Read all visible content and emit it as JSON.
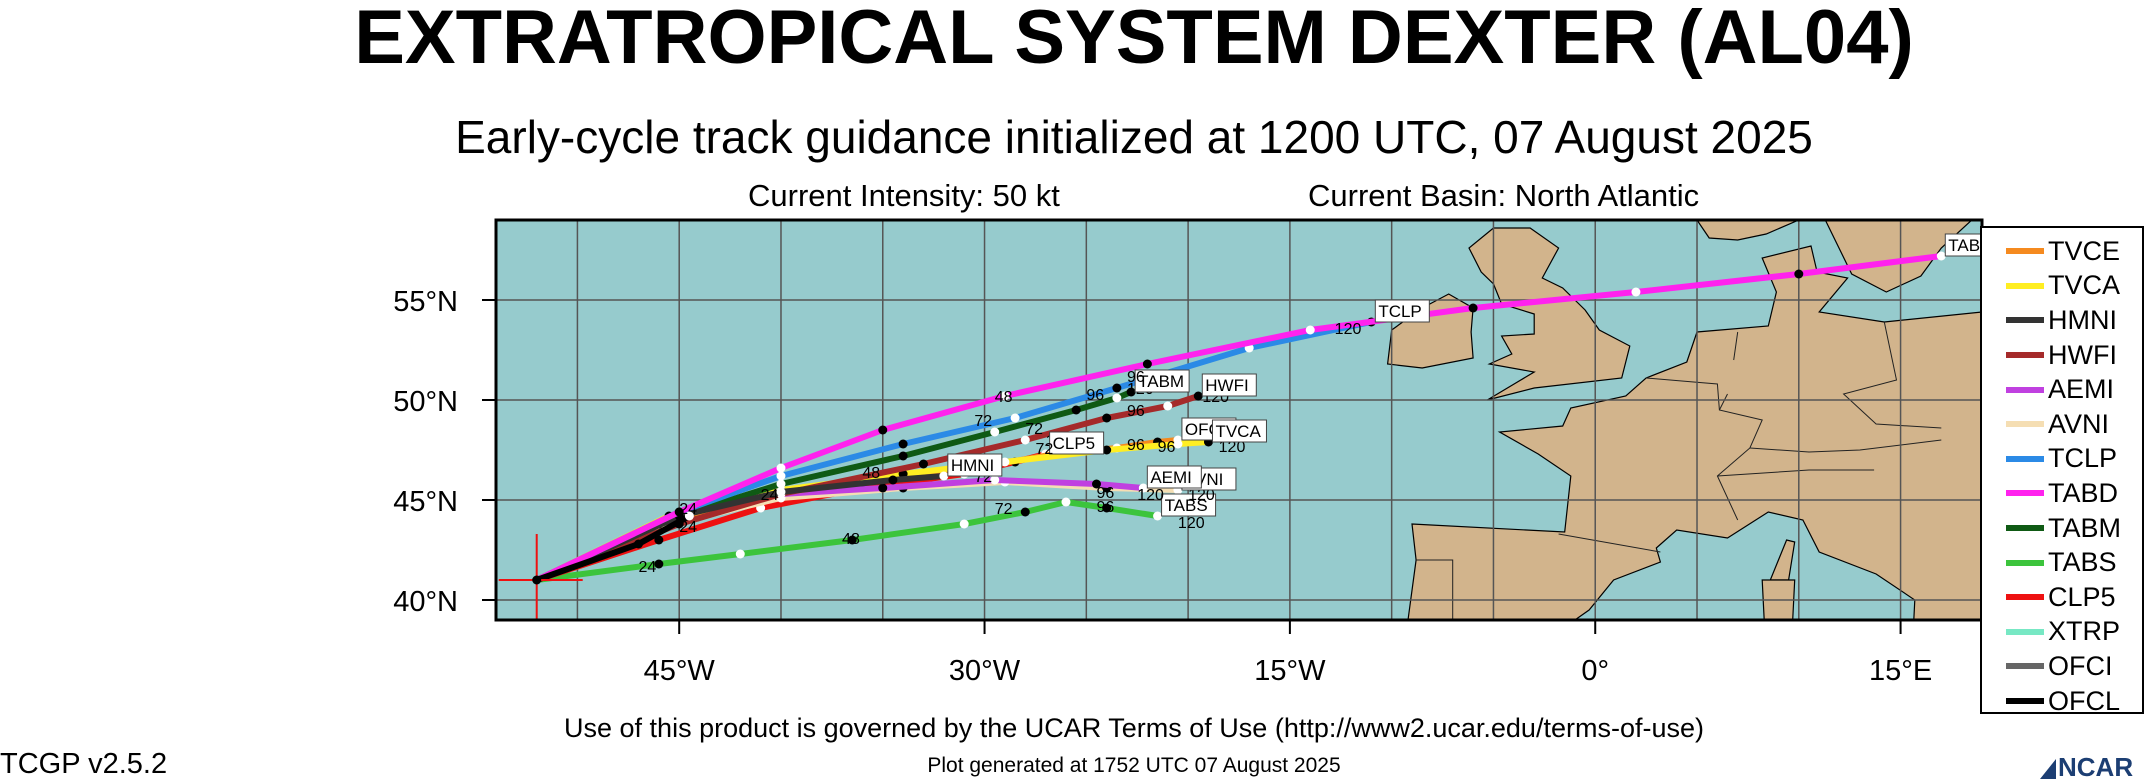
{
  "header": {
    "title": "EXTRATROPICAL SYSTEM DEXTER (AL04)",
    "subtitle": "Early-cycle track guidance initialized at 1200 UTC, 07 August 2025",
    "intensity": "Current Intensity: 50 kt",
    "basin": "Current Basin: North Atlantic"
  },
  "footer": {
    "terms": "Use of this product is governed by the UCAR Terms of Use (http://www2.ucar.edu/terms-of-use)",
    "generated": "Plot generated at 1752 UTC   07 August 2025",
    "version": "TCGP v2.5.2",
    "logo_text": "NCAR"
  },
  "map": {
    "lon_range": [
      -54,
      19
    ],
    "lat_range": [
      39,
      59
    ],
    "lon_ticks": [
      {
        "lon": -45,
        "label": "45°W"
      },
      {
        "lon": -30,
        "label": "30°W"
      },
      {
        "lon": -15,
        "label": "15°W"
      },
      {
        "lon": 0,
        "label": "0°"
      },
      {
        "lon": 15,
        "label": "15°E"
      }
    ],
    "lat_ticks": [
      {
        "lat": 40,
        "label": "40°N"
      },
      {
        "lat": 45,
        "label": "45°N"
      },
      {
        "lat": 50,
        "label": "50°N"
      },
      {
        "lat": 55,
        "label": "55°N"
      }
    ],
    "ocean_color": "#96cbcd",
    "land_color": "#d2b48c",
    "grid_color": "#555555",
    "current_position": {
      "lon": -52,
      "lat": 41
    }
  },
  "legend": [
    {
      "name": "TVCE",
      "color": "#f58a1f"
    },
    {
      "name": "TVCA",
      "color": "#ffee22"
    },
    {
      "name": "HMNI",
      "color": "#333333"
    },
    {
      "name": "HWFI",
      "color": "#a52a2a"
    },
    {
      "name": "AEMI",
      "color": "#c040e0"
    },
    {
      "name": "AVNI",
      "color": "#f5deb3"
    },
    {
      "name": "TCLP",
      "color": "#2b8ae6"
    },
    {
      "name": "TABD",
      "color": "#ff22ee"
    },
    {
      "name": "TABM",
      "color": "#0f5a14"
    },
    {
      "name": "TABS",
      "color": "#3cc43c"
    },
    {
      "name": "CLP5",
      "color": "#ee1111"
    },
    {
      "name": "XTRP",
      "color": "#77e8c4"
    },
    {
      "name": "OFCI",
      "color": "#666666"
    },
    {
      "name": "OFCL",
      "color": "#000000"
    }
  ],
  "tracks": [
    {
      "name": "TABS",
      "color": "#3cc43c",
      "points": [
        [
          -52,
          41
        ],
        [
          -46,
          41.8
        ],
        [
          -42,
          42.3
        ],
        [
          -36.5,
          43
        ],
        [
          -31,
          43.8
        ],
        [
          -28,
          44.4
        ],
        [
          -26,
          44.9
        ],
        [
          -24,
          44.6
        ],
        [
          -21.5,
          44.2
        ]
      ],
      "end_label": "TABS",
      "hour_labels": [
        [
          "24",
          -47,
          41.4
        ],
        [
          "48",
          -37,
          42.8
        ],
        [
          "72",
          -29.5,
          44.3
        ],
        [
          "96",
          -24.5,
          44.4
        ],
        [
          "120",
          -20.5,
          43.6
        ]
      ]
    },
    {
      "name": "CLP5",
      "color": "#ee1111",
      "points": [
        [
          -52,
          41
        ],
        [
          -46,
          43
        ],
        [
          -41,
          44.6
        ],
        [
          -36,
          45.6
        ],
        [
          -31,
          46.3
        ],
        [
          -28.5,
          46.9
        ],
        [
          -27,
          47.3
        ]
      ],
      "end_label": "CLP5",
      "hour_labels": [
        [
          "24",
          -45,
          43.4
        ],
        [
          "120",
          -27,
          47.7
        ]
      ]
    },
    {
      "name": "AVNI",
      "color": "#f5deb3",
      "points": [
        [
          -52,
          41
        ],
        [
          -45,
          43.9
        ],
        [
          -40,
          45.1
        ],
        [
          -34,
          45.6
        ],
        [
          -29,
          45.9
        ],
        [
          -24,
          45.6
        ],
        [
          -20.5,
          45.5
        ]
      ],
      "end_label": "AVNI",
      "hour_labels": [
        [
          "120",
          -20,
          45.0
        ]
      ]
    },
    {
      "name": "AEMI",
      "color": "#c040e0",
      "points": [
        [
          -52,
          41
        ],
        [
          -45,
          44.3
        ],
        [
          -40,
          45.3
        ],
        [
          -35,
          45.6
        ],
        [
          -29.5,
          46.0
        ],
        [
          -24.5,
          45.8
        ],
        [
          -22.2,
          45.6
        ]
      ],
      "end_label": "AEMI",
      "hour_labels": [
        [
          "96",
          -24.5,
          45.1
        ],
        [
          "120",
          -22.5,
          45.0
        ]
      ]
    },
    {
      "name": "TVCE",
      "color": "#f58a1f",
      "points": [
        [
          -52,
          41
        ],
        [
          -46,
          43.8
        ],
        [
          -41,
          45.2
        ],
        [
          -35,
          46.1
        ],
        [
          -30.5,
          46.6
        ],
        [
          -26.5,
          47.3
        ],
        [
          -23.5,
          47.6
        ],
        [
          -21.5,
          47.9
        ],
        [
          -20.5,
          48.0
        ]
      ],
      "end_label": "OFCL",
      "hour_labels": [
        [
          "72",
          -27.5,
          47.3
        ],
        [
          "96",
          -23,
          47.5
        ]
      ]
    },
    {
      "name": "TVCA",
      "color": "#ffee22",
      "points": [
        [
          -52,
          41
        ],
        [
          -45.5,
          44.2
        ],
        [
          -40,
          45.5
        ],
        [
          -34,
          46.3
        ],
        [
          -29,
          46.9
        ],
        [
          -24,
          47.5
        ],
        [
          -20.5,
          47.8
        ],
        [
          -19,
          47.9
        ]
      ],
      "end_label": "TVCA",
      "hour_labels": [
        [
          "96",
          -21.5,
          47.4
        ],
        [
          "120",
          -18.5,
          47.4
        ]
      ]
    },
    {
      "name": "HWFI",
      "color": "#a52a2a",
      "points": [
        [
          -52,
          41
        ],
        [
          -45,
          43.8
        ],
        [
          -40,
          45.3
        ],
        [
          -33,
          46.8
        ],
        [
          -28,
          48.0
        ],
        [
          -24,
          49.1
        ],
        [
          -21,
          49.7
        ],
        [
          -19.5,
          50.2
        ]
      ],
      "end_label": "HWFI",
      "hour_labels": [
        [
          "96",
          -23,
          49.2
        ],
        [
          "120",
          -19.3,
          49.9
        ]
      ]
    },
    {
      "name": "TABM",
      "color": "#0f5a14",
      "points": [
        [
          -52,
          41
        ],
        [
          -45,
          44.2
        ],
        [
          -40,
          45.8
        ],
        [
          -34,
          47.2
        ],
        [
          -29.5,
          48.4
        ],
        [
          -25.5,
          49.5
        ],
        [
          -23.5,
          50.1
        ],
        [
          -22.8,
          50.4
        ]
      ],
      "end_label": "TABM",
      "hour_labels": [
        [
          "72",
          -28,
          48.3
        ],
        [
          "96",
          -25,
          50.0
        ],
        [
          "120",
          -23,
          50.3
        ]
      ]
    },
    {
      "name": "HMNI",
      "color": "#333333",
      "points": [
        [
          -52,
          41
        ],
        [
          -45,
          44.2
        ],
        [
          -40,
          45.4
        ],
        [
          -34.5,
          46.0
        ],
        [
          -32,
          46.2
        ]
      ],
      "end_label": "HMNI",
      "hour_labels": [
        [
          "72",
          -30.5,
          45.9
        ]
      ]
    },
    {
      "name": "TCLP",
      "color": "#2b8ae6",
      "points": [
        [
          -52,
          41
        ],
        [
          -45,
          44.4
        ],
        [
          -40,
          46.2
        ],
        [
          -34,
          47.8
        ],
        [
          -28.5,
          49.1
        ],
        [
          -23.5,
          50.6
        ],
        [
          -17,
          52.6
        ],
        [
          -11,
          53.9
        ]
      ],
      "end_label": "TCLP",
      "hour_labels": [
        [
          "72",
          -30.5,
          48.7
        ],
        [
          "96",
          -23,
          50.9
        ],
        [
          "120",
          -12.8,
          53.3
        ]
      ]
    },
    {
      "name": "TABD",
      "color": "#ff22ee",
      "points": [
        [
          -52,
          41
        ],
        [
          -45,
          44.4
        ],
        [
          -40,
          46.6
        ],
        [
          -35,
          48.5
        ],
        [
          -29,
          50.2
        ],
        [
          -22,
          51.8
        ],
        [
          -14,
          53.5
        ],
        [
          -6,
          54.6
        ],
        [
          2,
          55.4
        ],
        [
          10,
          56.3
        ],
        [
          17,
          57.2
        ]
      ],
      "end_label": "TABD",
      "hour_labels": [
        [
          "48",
          -29.5,
          49.9
        ]
      ]
    },
    {
      "name": "OFCL",
      "color": "#000000",
      "points": [
        [
          -52,
          41
        ],
        [
          -47,
          42.8
        ],
        [
          -44.5,
          44.2
        ]
      ],
      "end_label": "",
      "hour_labels": [
        [
          "24",
          -45,
          44.3
        ],
        [
          "24",
          -41,
          45.0
        ],
        [
          "48",
          -36,
          46.1
        ]
      ]
    }
  ],
  "track_labels": [
    "TABD",
    "TCLP",
    "TABM",
    "HWFI",
    "CLP5",
    "OFCL",
    "TVCA",
    "HMNI",
    "AEMI",
    "AVNI",
    "TABS"
  ]
}
